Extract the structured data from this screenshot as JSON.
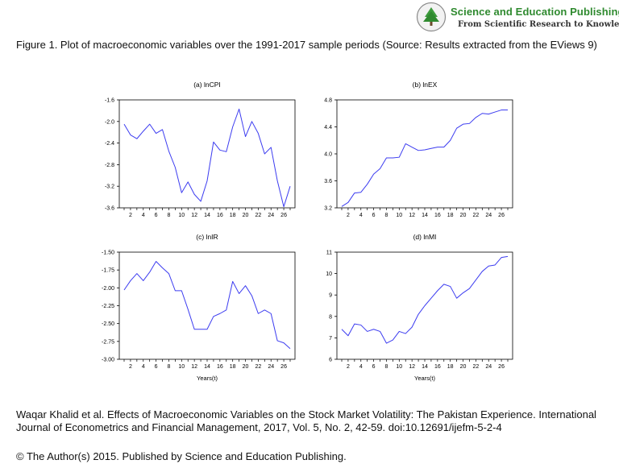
{
  "brand": {
    "name": "Science and Education Publishing",
    "tagline": "From Scientific Research to Knowledge"
  },
  "caption": "Figure 1. Plot of macroeconomic variables over the 1991-2017 sample periods (Source: Results extracted from the EViews 9)",
  "citation": "Waqar Khalid et al. Effects of Macroeconomic Variables on the Stock Market Volatility: The Pakistan Experience. International Journal of Econometrics and Financial Management, 2017, Vol. 5, No. 2, 42-59. doi:10.12691/ijefm-5-2-4",
  "copyright": "© The Author(s) 2015. Published by Science and Education Publishing.",
  "colors": {
    "line": "#3c3cf0",
    "brand_green": "#2f8a2f",
    "axis": "#000000"
  },
  "chart_data": [
    {
      "type": "line",
      "title": "(a) lnCPI",
      "xlabel": "",
      "x": [
        1,
        2,
        3,
        4,
        5,
        6,
        7,
        8,
        9,
        10,
        11,
        12,
        13,
        14,
        15,
        16,
        17,
        18,
        19,
        20,
        21,
        22,
        23,
        24,
        25,
        26,
        27
      ],
      "xticks": [
        2,
        4,
        6,
        8,
        10,
        12,
        14,
        16,
        18,
        20,
        22,
        24,
        26
      ],
      "ylim": [
        -3.6,
        -1.6
      ],
      "yticks": [
        -1.6,
        -2.0,
        -2.4,
        -2.8,
        -3.2,
        -3.6
      ],
      "yticklabels": [
        "-1.6",
        "-2.0",
        "-2.4",
        "-2.8",
        "-3.2",
        "-3.6"
      ],
      "series": [
        {
          "values": [
            -2.05,
            -2.25,
            -2.32,
            -2.18,
            -2.05,
            -2.22,
            -2.15,
            -2.55,
            -2.85,
            -3.32,
            -3.12,
            -3.35,
            -3.48,
            -3.1,
            -2.38,
            -2.53,
            -2.56,
            -2.1,
            -1.77,
            -2.28,
            -2.0,
            -2.22,
            -2.6,
            -2.48,
            -3.1,
            -3.58,
            -3.2
          ]
        }
      ]
    },
    {
      "type": "line",
      "title": "(b) lnEX",
      "xlabel": "",
      "x": [
        1,
        2,
        3,
        4,
        5,
        6,
        7,
        8,
        9,
        10,
        11,
        12,
        13,
        14,
        15,
        16,
        17,
        18,
        19,
        20,
        21,
        22,
        23,
        24,
        25,
        26,
        27
      ],
      "xticks": [
        2,
        4,
        6,
        8,
        10,
        12,
        14,
        16,
        18,
        20,
        22,
        24,
        26
      ],
      "ylim": [
        3.2,
        4.8
      ],
      "yticks": [
        4.8,
        4.4,
        4.0,
        3.6,
        3.2
      ],
      "yticklabels": [
        "4.8",
        "4.4",
        "4.0",
        "3.6",
        "3.2"
      ],
      "series": [
        {
          "values": [
            3.22,
            3.28,
            3.42,
            3.43,
            3.55,
            3.7,
            3.78,
            3.94,
            3.94,
            3.95,
            4.15,
            4.1,
            4.05,
            4.06,
            4.08,
            4.1,
            4.1,
            4.2,
            4.38,
            4.44,
            4.45,
            4.54,
            4.6,
            4.59,
            4.62,
            4.65,
            4.65
          ]
        }
      ]
    },
    {
      "type": "line",
      "title": "(c) lnIR",
      "xlabel": "Years(t)",
      "x": [
        1,
        2,
        3,
        4,
        5,
        6,
        7,
        8,
        9,
        10,
        11,
        12,
        13,
        14,
        15,
        16,
        17,
        18,
        19,
        20,
        21,
        22,
        23,
        24,
        25,
        26,
        27
      ],
      "xticks": [
        2,
        4,
        6,
        8,
        10,
        12,
        14,
        16,
        18,
        20,
        22,
        24,
        26
      ],
      "ylim": [
        -3.0,
        -1.5
      ],
      "yticks": [
        -1.5,
        -1.75,
        -2.0,
        -2.25,
        -2.5,
        -2.75,
        -3.0
      ],
      "yticklabels": [
        "-1.50",
        "-1.75",
        "-2.00",
        "-2.25",
        "-2.50",
        "-2.75",
        "-3.00"
      ],
      "series": [
        {
          "values": [
            -2.03,
            -1.9,
            -1.8,
            -1.9,
            -1.78,
            -1.63,
            -1.72,
            -1.8,
            -2.04,
            -2.04,
            -2.3,
            -2.58,
            -2.58,
            -2.58,
            -2.4,
            -2.36,
            -2.31,
            -1.91,
            -2.08,
            -1.97,
            -2.11,
            -2.36,
            -2.31,
            -2.36,
            -2.74,
            -2.77,
            -2.85
          ]
        }
      ]
    },
    {
      "type": "line",
      "title": "(d) lnMI",
      "xlabel": "Years(t)",
      "x": [
        1,
        2,
        3,
        4,
        5,
        6,
        7,
        8,
        9,
        10,
        11,
        12,
        13,
        14,
        15,
        16,
        17,
        18,
        19,
        20,
        21,
        22,
        23,
        24,
        25,
        26,
        27
      ],
      "xticks": [
        2,
        4,
        6,
        8,
        10,
        12,
        14,
        16,
        18,
        20,
        22,
        24,
        26
      ],
      "ylim": [
        6,
        11
      ],
      "yticks": [
        11,
        10,
        9,
        8,
        7,
        6
      ],
      "yticklabels": [
        "11",
        "10",
        "9",
        "8",
        "7",
        "6"
      ],
      "series": [
        {
          "values": [
            7.4,
            7.1,
            7.65,
            7.6,
            7.3,
            7.4,
            7.3,
            6.75,
            6.9,
            7.3,
            7.2,
            7.5,
            8.1,
            8.5,
            8.85,
            9.2,
            9.5,
            9.4,
            8.85,
            9.1,
            9.3,
            9.7,
            10.1,
            10.35,
            10.4,
            10.75,
            10.8
          ]
        }
      ]
    }
  ]
}
